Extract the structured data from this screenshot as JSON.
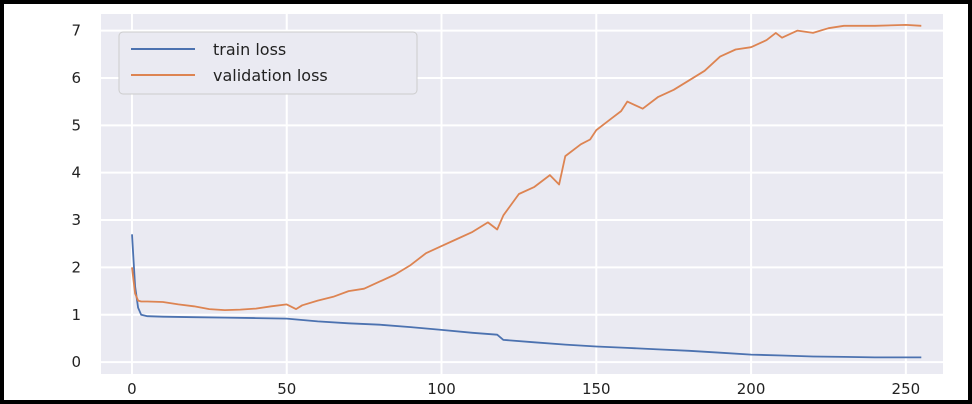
{
  "chart_data": {
    "type": "line",
    "title": "",
    "xlabel": "",
    "ylabel": "",
    "xlim": [
      -10,
      262
    ],
    "ylim": [
      -0.25,
      7.35
    ],
    "x_ticks": [
      0,
      50,
      100,
      150,
      200,
      250
    ],
    "y_ticks": [
      0,
      1,
      2,
      3,
      4,
      5,
      6,
      7
    ],
    "grid": true,
    "legend_position": "top-left",
    "background_color": "#eaeaf2",
    "grid_color": "#ffffff",
    "series": [
      {
        "name": "train loss",
        "color": "#4c72b0",
        "x": [
          0,
          1,
          2,
          3,
          5,
          10,
          20,
          30,
          40,
          50,
          60,
          70,
          80,
          90,
          100,
          110,
          118,
          120,
          130,
          140,
          150,
          160,
          170,
          180,
          190,
          200,
          210,
          220,
          230,
          240,
          250,
          255
        ],
        "y": [
          2.7,
          1.6,
          1.15,
          1.0,
          0.97,
          0.96,
          0.95,
          0.94,
          0.93,
          0.92,
          0.86,
          0.82,
          0.79,
          0.74,
          0.68,
          0.62,
          0.58,
          0.47,
          0.42,
          0.37,
          0.33,
          0.3,
          0.27,
          0.24,
          0.2,
          0.16,
          0.14,
          0.12,
          0.11,
          0.1,
          0.1,
          0.1
        ]
      },
      {
        "name": "validation loss",
        "color": "#dd8452",
        "x": [
          0,
          1,
          2,
          3,
          5,
          10,
          15,
          20,
          25,
          30,
          35,
          40,
          45,
          50,
          53,
          55,
          60,
          65,
          70,
          75,
          80,
          85,
          90,
          95,
          100,
          105,
          110,
          115,
          118,
          120,
          125,
          130,
          135,
          138,
          140,
          145,
          148,
          150,
          155,
          158,
          160,
          165,
          170,
          175,
          180,
          185,
          190,
          195,
          200,
          205,
          208,
          210,
          215,
          220,
          225,
          230,
          240,
          250,
          255
        ],
        "y": [
          2.0,
          1.45,
          1.3,
          1.28,
          1.28,
          1.27,
          1.22,
          1.18,
          1.12,
          1.1,
          1.11,
          1.13,
          1.18,
          1.22,
          1.12,
          1.2,
          1.3,
          1.38,
          1.5,
          1.55,
          1.7,
          1.85,
          2.05,
          2.3,
          2.45,
          2.6,
          2.75,
          2.95,
          2.8,
          3.1,
          3.55,
          3.7,
          3.95,
          3.75,
          4.35,
          4.6,
          4.7,
          4.9,
          5.15,
          5.3,
          5.5,
          5.35,
          5.6,
          5.75,
          5.95,
          6.15,
          6.45,
          6.6,
          6.65,
          6.8,
          6.95,
          6.85,
          7.0,
          6.95,
          7.05,
          7.1,
          7.1,
          7.12,
          7.1
        ]
      }
    ]
  }
}
